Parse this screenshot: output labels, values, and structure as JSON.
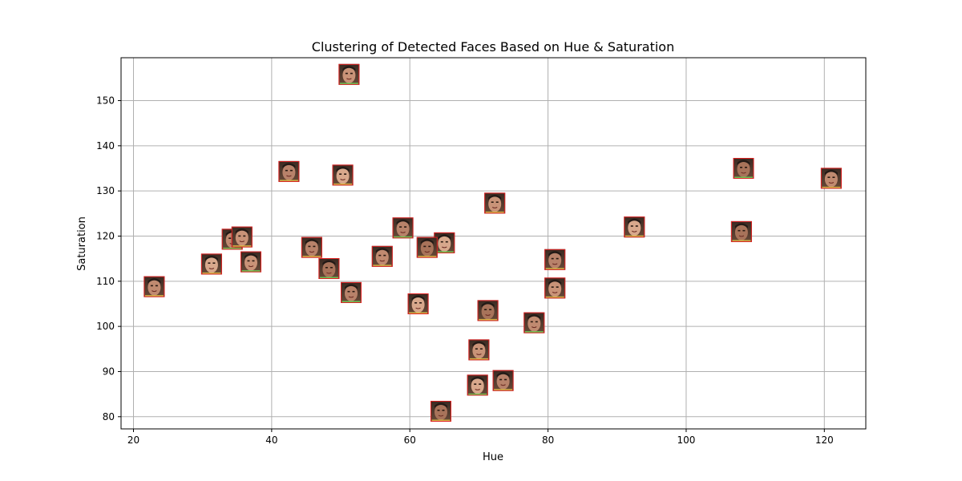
{
  "chart_data": {
    "type": "scatter",
    "title": "Clustering of Detected Faces Based on Hue & Saturation",
    "xlabel": "Hue",
    "ylabel": "Saturation",
    "xlim": [
      18.2,
      126
    ],
    "ylim": [
      77.3,
      159.5
    ],
    "xticks": [
      20,
      40,
      60,
      80,
      100,
      120
    ],
    "yticks": [
      80,
      90,
      100,
      110,
      120,
      130,
      140,
      150
    ],
    "grid": true,
    "marker": "face-thumbnail",
    "points": [
      {
        "x": 51.2,
        "y": 155.8
      },
      {
        "x": 42.5,
        "y": 134.3
      },
      {
        "x": 50.3,
        "y": 133.5
      },
      {
        "x": 108.3,
        "y": 135.0
      },
      {
        "x": 121.0,
        "y": 132.8
      },
      {
        "x": 72.3,
        "y": 127.3
      },
      {
        "x": 59.0,
        "y": 121.8
      },
      {
        "x": 92.5,
        "y": 122.0
      },
      {
        "x": 108.0,
        "y": 121.0
      },
      {
        "x": 34.3,
        "y": 119.3
      },
      {
        "x": 35.7,
        "y": 119.8
      },
      {
        "x": 45.8,
        "y": 117.5
      },
      {
        "x": 65.0,
        "y": 118.5
      },
      {
        "x": 62.5,
        "y": 117.5
      },
      {
        "x": 56.0,
        "y": 115.5
      },
      {
        "x": 37.0,
        "y": 114.3
      },
      {
        "x": 81.0,
        "y": 114.8
      },
      {
        "x": 31.3,
        "y": 113.8
      },
      {
        "x": 48.3,
        "y": 112.8
      },
      {
        "x": 23.0,
        "y": 108.8
      },
      {
        "x": 81.0,
        "y": 108.5
      },
      {
        "x": 51.5,
        "y": 107.5
      },
      {
        "x": 61.2,
        "y": 105.0
      },
      {
        "x": 71.3,
        "y": 103.5
      },
      {
        "x": 78.0,
        "y": 100.8
      },
      {
        "x": 70.0,
        "y": 94.8
      },
      {
        "x": 73.5,
        "y": 88.0
      },
      {
        "x": 69.8,
        "y": 87.0
      },
      {
        "x": 64.5,
        "y": 81.2
      }
    ]
  }
}
